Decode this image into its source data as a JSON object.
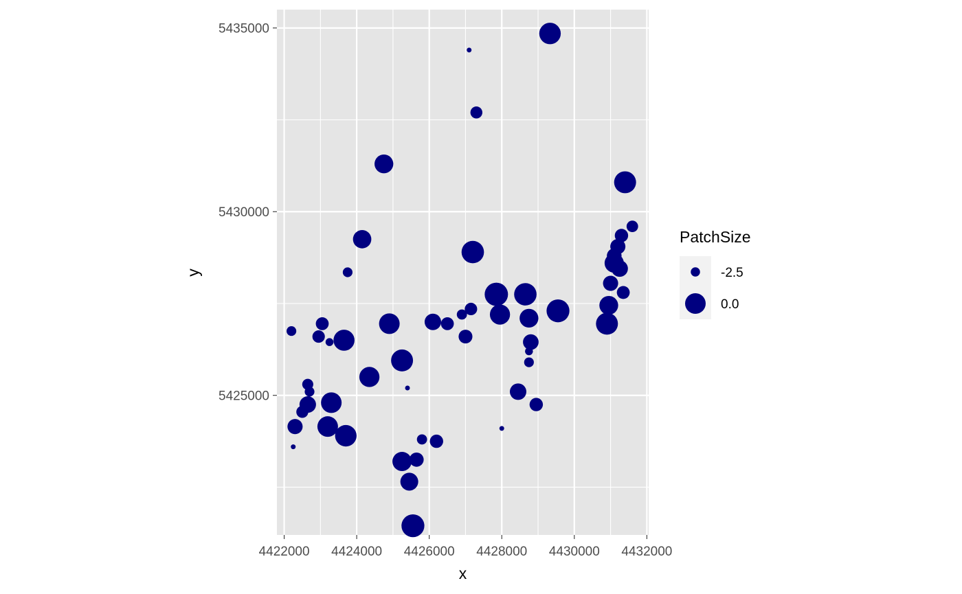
{
  "chart_data": {
    "type": "scatter",
    "title": "",
    "xlabel": "x",
    "ylabel": "y",
    "xlim": [
      4421800,
      4432050
    ],
    "ylim": [
      5421200,
      5435500
    ],
    "x_ticks": [
      4422000,
      4424000,
      4426000,
      4428000,
      4430000,
      4432000
    ],
    "x_tick_labels": [
      "4422000",
      "4424000",
      "4426000",
      "4428000",
      "4430000",
      "4432000"
    ],
    "y_ticks": [
      5425000,
      5430000,
      5435000
    ],
    "y_tick_labels": [
      "5425000",
      "5430000",
      "5435000"
    ],
    "grid": true,
    "panel_background": "#e5e5e5",
    "grid_color": "#ffffff",
    "point_color": "#000080",
    "size_variable": "PatchSize",
    "legend": {
      "title": "PatchSize",
      "position": "right",
      "entries": [
        {
          "label": "-2.5",
          "size": -2.5
        },
        {
          "label": "0.0",
          "size": 0.0
        }
      ]
    },
    "points": [
      {
        "x": 4429330,
        "y": 5434850,
        "size": 0.2
      },
      {
        "x": 4427100,
        "y": 5434400,
        "size": -5.5
      },
      {
        "x": 4427300,
        "y": 5432700,
        "size": -1.9
      },
      {
        "x": 4424750,
        "y": 5431300,
        "size": -0.4
      },
      {
        "x": 4431400,
        "y": 5430800,
        "size": 0.3
      },
      {
        "x": 4431600,
        "y": 5429600,
        "size": -2.0
      },
      {
        "x": 4431300,
        "y": 5429350,
        "size": -1.6
      },
      {
        "x": 4431200,
        "y": 5429050,
        "size": -1.2
      },
      {
        "x": 4431100,
        "y": 5428800,
        "size": -1.3
      },
      {
        "x": 4431100,
        "y": 5428600,
        "size": -0.3
      },
      {
        "x": 4431250,
        "y": 5428450,
        "size": -0.9
      },
      {
        "x": 4431000,
        "y": 5428050,
        "size": -1.2
      },
      {
        "x": 4431350,
        "y": 5427800,
        "size": -1.7
      },
      {
        "x": 4424150,
        "y": 5429250,
        "size": -0.5
      },
      {
        "x": 4427200,
        "y": 5428900,
        "size": 0.4
      },
      {
        "x": 4423750,
        "y": 5428350,
        "size": -2.4
      },
      {
        "x": 4427850,
        "y": 5427750,
        "size": 0.6
      },
      {
        "x": 4428650,
        "y": 5427750,
        "size": 0.4
      },
      {
        "x": 4430950,
        "y": 5427450,
        "size": -0.4
      },
      {
        "x": 4427150,
        "y": 5427350,
        "size": -1.8
      },
      {
        "x": 4426900,
        "y": 5427200,
        "size": -2.3
      },
      {
        "x": 4427950,
        "y": 5427200,
        "size": -0.1
      },
      {
        "x": 4429550,
        "y": 5427300,
        "size": 0.5
      },
      {
        "x": 4428750,
        "y": 5427100,
        "size": -0.4
      },
      {
        "x": 4426100,
        "y": 5427000,
        "size": -0.9
      },
      {
        "x": 4426500,
        "y": 5426950,
        "size": -1.7
      },
      {
        "x": 4424900,
        "y": 5426950,
        "size": 0.0
      },
      {
        "x": 4430900,
        "y": 5426950,
        "size": 0.3
      },
      {
        "x": 4422200,
        "y": 5426750,
        "size": -2.4
      },
      {
        "x": 4423050,
        "y": 5426950,
        "size": -1.7
      },
      {
        "x": 4422950,
        "y": 5426600,
        "size": -1.8
      },
      {
        "x": 4423250,
        "y": 5426450,
        "size": -2.8
      },
      {
        "x": 4423650,
        "y": 5426500,
        "size": 0.1
      },
      {
        "x": 4427000,
        "y": 5426600,
        "size": -1.5
      },
      {
        "x": 4428800,
        "y": 5426450,
        "size": -1.1
      },
      {
        "x": 4428750,
        "y": 5426200,
        "size": -2.8
      },
      {
        "x": 4428750,
        "y": 5425900,
        "size": -2.4
      },
      {
        "x": 4425250,
        "y": 5425950,
        "size": 0.3
      },
      {
        "x": 4424350,
        "y": 5425500,
        "size": -0.1
      },
      {
        "x": 4422650,
        "y": 5425300,
        "size": -2.1
      },
      {
        "x": 4422700,
        "y": 5425100,
        "size": -2.4
      },
      {
        "x": 4425400,
        "y": 5425200,
        "size": -4.2
      },
      {
        "x": 4428450,
        "y": 5425100,
        "size": -0.9
      },
      {
        "x": 4422650,
        "y": 5424750,
        "size": -0.9
      },
      {
        "x": 4423300,
        "y": 5424800,
        "size": 0.0
      },
      {
        "x": 4428950,
        "y": 5424750,
        "size": -1.6
      },
      {
        "x": 4422500,
        "y": 5424550,
        "size": -1.9
      },
      {
        "x": 4422300,
        "y": 5424150,
        "size": -1.2
      },
      {
        "x": 4423200,
        "y": 5424150,
        "size": 0.0
      },
      {
        "x": 4423700,
        "y": 5423900,
        "size": 0.2
      },
      {
        "x": 4428000,
        "y": 5424100,
        "size": -5.0
      },
      {
        "x": 4425800,
        "y": 5423800,
        "size": -2.3
      },
      {
        "x": 4426200,
        "y": 5423750,
        "size": -1.6
      },
      {
        "x": 4422250,
        "y": 5423600,
        "size": -4.0
      },
      {
        "x": 4425250,
        "y": 5423200,
        "size": -0.3
      },
      {
        "x": 4425650,
        "y": 5423250,
        "size": -1.4
      },
      {
        "x": 4425450,
        "y": 5422650,
        "size": -0.6
      },
      {
        "x": 4425550,
        "y": 5421450,
        "size": 0.5
      }
    ]
  }
}
